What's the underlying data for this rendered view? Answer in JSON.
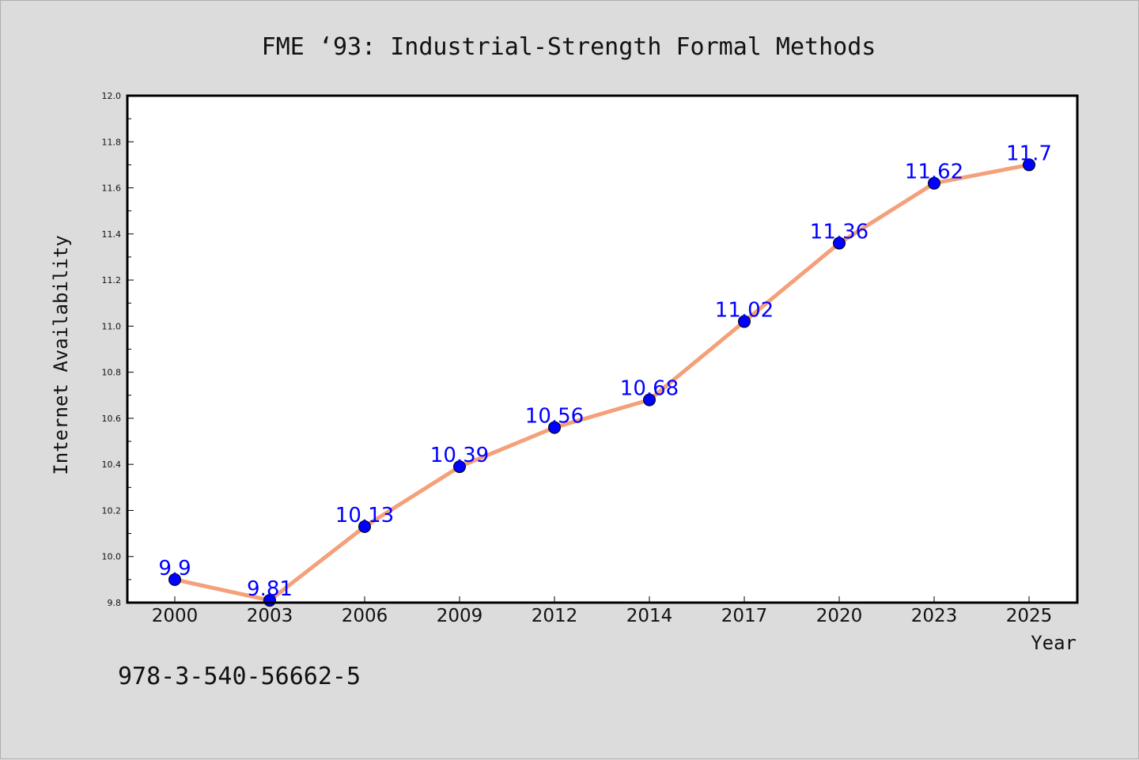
{
  "chart_data": {
    "type": "line",
    "title": "FME  ‘93: Industrial-Strength Formal Methods",
    "xlabel": "Year",
    "ylabel": "Internet Availability",
    "categories": [
      "2000",
      "2003",
      "2006",
      "2009",
      "2012",
      "2014",
      "2017",
      "2020",
      "2023",
      "2025"
    ],
    "series": [
      {
        "values": [
          9.9,
          9.81,
          10.13,
          10.39,
          10.56,
          10.68,
          11.02,
          11.36,
          11.62,
          11.7
        ],
        "value_labels": [
          "9.9",
          "9.81",
          "10.13",
          "10.39",
          "10.56",
          "10.68",
          "11.02",
          "11.36",
          "11.62",
          "11.7"
        ],
        "line_color": "#f4a07a",
        "marker_color": "#0000ff",
        "label_color": "#0000ff"
      }
    ],
    "ylim": [
      9.8,
      12.0
    ],
    "yticks": [
      "9.8",
      "10.0",
      "10.2",
      "10.4",
      "10.6",
      "10.8",
      "11.0",
      "11.2",
      "11.4",
      "11.6",
      "11.8",
      "12.0"
    ],
    "grid": false,
    "legend": "none"
  },
  "footer": {
    "isbn": "978-3-540-56662-5"
  },
  "colors": {
    "background": "#dcdcdc",
    "plot_background": "#ffffff"
  }
}
